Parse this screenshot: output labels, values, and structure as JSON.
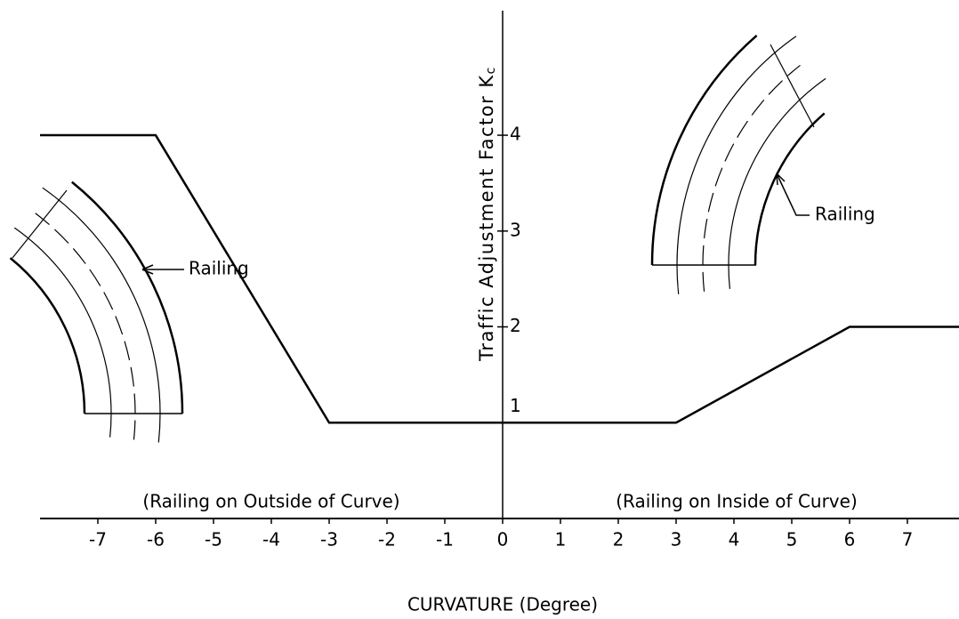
{
  "chart_data": {
    "type": "line",
    "x_label": "CURVATURE (Degree)",
    "y_label": "Traffic Adjustment Factor K",
    "y_label_subscript": "c",
    "x": [
      -8,
      -6,
      -3,
      3,
      6,
      7.9
    ],
    "values": [
      4,
      4,
      1,
      1,
      2,
      2
    ],
    "color": "#000000",
    "xlim": [
      -8,
      7.9
    ],
    "ylim": [
      0,
      5.3
    ],
    "xticks": [
      -7,
      -6,
      -5,
      -4,
      -3,
      -2,
      -1,
      0,
      1,
      2,
      3,
      4,
      5,
      6,
      7
    ],
    "yticks": [
      1,
      2,
      3,
      4
    ],
    "annotations": [
      "(Railing on Outside of Curve)",
      "(Railing on Inside of Curve)",
      "Railing",
      "Railing"
    ]
  }
}
